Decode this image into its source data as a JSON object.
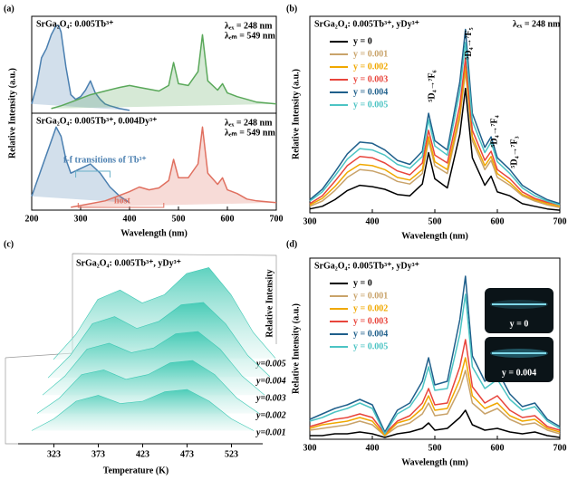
{
  "chart_data": [
    {
      "type": "line",
      "panel_label": "(a)",
      "title": "SrGa₂O₄: 0.005Tb³⁺",
      "ylabel": "Relative Intensity (a.u.)",
      "fill": true,
      "annotations": [
        "λₑₓ = 248 nm",
        "λₑₘ = 549 nm"
      ],
      "xlim": [
        200,
        700
      ],
      "ylim": [
        0,
        105
      ],
      "series": [
        {
          "color": "#4a7fb0",
          "x": [
            200,
            210,
            220,
            230,
            240,
            250,
            255,
            260,
            270,
            280,
            290,
            300,
            310,
            320,
            330,
            340,
            350,
            360,
            380,
            400
          ],
          "values": [
            10,
            30,
            60,
            70,
            85,
            95,
            95,
            88,
            50,
            20,
            15,
            18,
            25,
            35,
            22,
            15,
            10,
            8,
            5,
            3
          ]
        },
        {
          "color": "#5aa85a",
          "x": [
            240,
            260,
            280,
            300,
            320,
            350,
            380,
            400,
            420,
            440,
            460,
            480,
            490,
            500,
            520,
            540,
            549,
            560,
            580,
            590,
            600,
            620,
            640,
            660,
            700
          ],
          "values": [
            5,
            8,
            12,
            16,
            20,
            24,
            28,
            30,
            28,
            26,
            24,
            30,
            55,
            32,
            30,
            45,
            85,
            35,
            25,
            32,
            22,
            18,
            15,
            12,
            10
          ]
        }
      ]
    },
    {
      "type": "line",
      "title": "SrGa₂O₄: 0.005Tb³⁺, 0.004Dy³⁺",
      "xlabel": "Wavelength (nm)",
      "fill": true,
      "annotations": [
        "λₑₓ = 248 nm",
        "λₑₘ = 549 nm",
        "f-f transitions of Tb³⁺",
        "host"
      ],
      "xlim": [
        200,
        700
      ],
      "xticks": [
        200,
        300,
        400,
        500,
        600,
        700
      ],
      "ylim": [
        0,
        105
      ],
      "series": [
        {
          "color": "#4a7fb0",
          "x": [
            200,
            220,
            240,
            250,
            260,
            270,
            280,
            300,
            320,
            340,
            360,
            380,
            400
          ],
          "values": [
            15,
            45,
            75,
            90,
            80,
            55,
            40,
            45,
            50,
            40,
            25,
            15,
            8
          ]
        },
        {
          "color": "#e07060",
          "x": [
            280,
            300,
            350,
            400,
            420,
            440,
            460,
            480,
            490,
            500,
            520,
            540,
            549,
            560,
            580,
            590,
            600,
            620,
            640,
            660,
            700
          ],
          "values": [
            3,
            5,
            10,
            20,
            25,
            22,
            24,
            32,
            55,
            35,
            35,
            50,
            90,
            40,
            28,
            35,
            22,
            18,
            12,
            10,
            8
          ]
        }
      ]
    },
    {
      "type": "line",
      "panel_label": "(b)",
      "title": "SrGa₂O₄: 0.005Tb³⁺, yDy³⁺",
      "xlabel": "Wavelength (nm)",
      "ylabel": "Relative Intensity (a.u.)",
      "annotations": [
        "λₑₓ = 248 nm",
        "⁵D₄→⁷F₆",
        "⁵D₄→⁷F₅",
        "⁵D₄→⁷F₄",
        "⁵D₄→⁷F₃"
      ],
      "xlim": [
        300,
        700
      ],
      "xticks": [
        300,
        400,
        500,
        600,
        700
      ],
      "ylim": [
        0,
        150
      ],
      "x": [
        300,
        320,
        340,
        360,
        380,
        400,
        420,
        440,
        460,
        480,
        490,
        500,
        520,
        540,
        549,
        560,
        580,
        590,
        600,
        620,
        640,
        660,
        680,
        700
      ],
      "series": [
        {
          "name": "y = 0",
          "color": "#000000",
          "values": [
            3,
            5,
            10,
            17,
            21,
            20,
            18,
            14,
            13,
            22,
            46,
            26,
            19,
            60,
            95,
            42,
            21,
            28,
            16,
            13,
            7,
            5,
            3,
            2
          ]
        },
        {
          "name": "y = 0.001",
          "color": "#c9a36a",
          "values": [
            5,
            9,
            17,
            27,
            33,
            32,
            29,
            24,
            22,
            30,
            55,
            36,
            30,
            72,
            108,
            55,
            33,
            40,
            27,
            21,
            13,
            9,
            6,
            4
          ]
        },
        {
          "name": "y = 0.002",
          "color": "#f0a800",
          "values": [
            6,
            11,
            20,
            31,
            37,
            36,
            33,
            27,
            25,
            33,
            58,
            39,
            33,
            76,
            112,
            58,
            36,
            43,
            30,
            23,
            14,
            10,
            7,
            5
          ]
        },
        {
          "name": "y = 0.003",
          "color": "#e8453c",
          "values": [
            7,
            13,
            24,
            36,
            43,
            42,
            38,
            32,
            29,
            38,
            63,
            44,
            38,
            82,
            118,
            63,
            40,
            47,
            33,
            26,
            16,
            11,
            8,
            6
          ]
        },
        {
          "name": "y = 0.004",
          "color": "#1f5f8b",
          "values": [
            10,
            18,
            31,
            45,
            54,
            53,
            48,
            40,
            37,
            47,
            76,
            55,
            48,
            100,
            140,
            76,
            50,
            58,
            42,
            33,
            21,
            15,
            10,
            7
          ]
        },
        {
          "name": "y = 0.005",
          "color": "#4cc4c4",
          "values": [
            9,
            16,
            28,
            41,
            49,
            48,
            44,
            37,
            34,
            43,
            71,
            51,
            44,
            93,
            130,
            70,
            46,
            54,
            39,
            30,
            19,
            13,
            9,
            6
          ]
        }
      ]
    },
    {
      "type": "waterfall",
      "panel_label": "(c)",
      "title": "SrGa₂O₄: 0.005Tb³⁺, yDy³⁺",
      "xlabel": "Temperature (K)",
      "zlabel": "Relative Intensity",
      "xlim": [
        298,
        548
      ],
      "xticks": [
        323,
        373,
        423,
        473,
        523
      ],
      "ylim": [
        0,
        100
      ],
      "x": [
        298,
        323,
        348,
        373,
        398,
        423,
        448,
        473,
        498,
        523,
        548
      ],
      "series": [
        {
          "name": "y=0.001",
          "color": "#3cc8b4",
          "values": [
            5,
            15,
            30,
            35,
            28,
            30,
            38,
            40,
            30,
            15,
            5
          ]
        },
        {
          "name": "y=0.002",
          "color": "#3cc8b4",
          "values": [
            5,
            18,
            38,
            42,
            34,
            38,
            48,
            50,
            38,
            18,
            5
          ]
        },
        {
          "name": "y=0.003",
          "color": "#3cc8b4",
          "values": [
            6,
            22,
            45,
            50,
            42,
            46,
            58,
            60,
            45,
            22,
            6
          ]
        },
        {
          "name": "y=0.004",
          "color": "#3cc8b4",
          "values": [
            6,
            25,
            52,
            58,
            48,
            54,
            68,
            70,
            52,
            25,
            7
          ]
        },
        {
          "name": "y=0.005",
          "color": "#3cc8b4",
          "values": [
            7,
            28,
            58,
            66,
            55,
            62,
            80,
            85,
            62,
            30,
            8
          ]
        }
      ]
    },
    {
      "type": "line",
      "panel_label": "(d)",
      "title": "SrGa₂O₄: 0.005Tb³⁺, yDy³⁺",
      "xlabel": "Wavelength (nm)",
      "ylabel": "Relative Intensity (a.u.)",
      "insets": [
        "y = 0",
        "y = 0.004"
      ],
      "xlim": [
        300,
        700
      ],
      "xticks": [
        300,
        400,
        500,
        600,
        700
      ],
      "ylim": [
        0,
        100
      ],
      "x": [
        300,
        320,
        340,
        360,
        380,
        400,
        420,
        440,
        460,
        480,
        490,
        500,
        520,
        540,
        549,
        560,
        580,
        600,
        620,
        640,
        660,
        680,
        700
      ],
      "series": [
        {
          "name": "y = 0",
          "color": "#000000",
          "values": [
            2,
            2,
            3,
            3,
            4,
            3,
            1,
            3,
            4,
            6,
            9,
            5,
            6,
            12,
            16,
            8,
            5,
            6,
            4,
            3,
            4,
            2,
            1
          ]
        },
        {
          "name": "y = 0.001",
          "color": "#c9a36a",
          "values": [
            5,
            6,
            7,
            8,
            10,
            8,
            2,
            7,
            9,
            14,
            20,
            13,
            14,
            28,
            38,
            20,
            14,
            17,
            11,
            8,
            9,
            5,
            3
          ]
        },
        {
          "name": "y = 0.002",
          "color": "#f0a800",
          "values": [
            6,
            8,
            9,
            10,
            12,
            10,
            2,
            9,
            11,
            17,
            24,
            16,
            17,
            33,
            45,
            24,
            17,
            20,
            13,
            10,
            11,
            6,
            4
          ]
        },
        {
          "name": "y = 0.003",
          "color": "#e8453c",
          "values": [
            7,
            9,
            11,
            12,
            14,
            12,
            3,
            10,
            13,
            20,
            28,
            19,
            20,
            40,
            55,
            29,
            20,
            24,
            16,
            12,
            13,
            7,
            5
          ]
        },
        {
          "name": "y = 0.004",
          "color": "#1f5f8b",
          "values": [
            11,
            14,
            17,
            19,
            22,
            19,
            4,
            16,
            20,
            32,
            45,
            30,
            32,
            66,
            90,
            46,
            32,
            38,
            25,
            18,
            20,
            11,
            7
          ]
        },
        {
          "name": "y = 0.005",
          "color": "#4cc4c4",
          "values": [
            10,
            12,
            15,
            17,
            20,
            17,
            3,
            14,
            18,
            28,
            40,
            27,
            28,
            58,
            80,
            40,
            28,
            33,
            22,
            16,
            18,
            10,
            6
          ]
        }
      ]
    }
  ]
}
